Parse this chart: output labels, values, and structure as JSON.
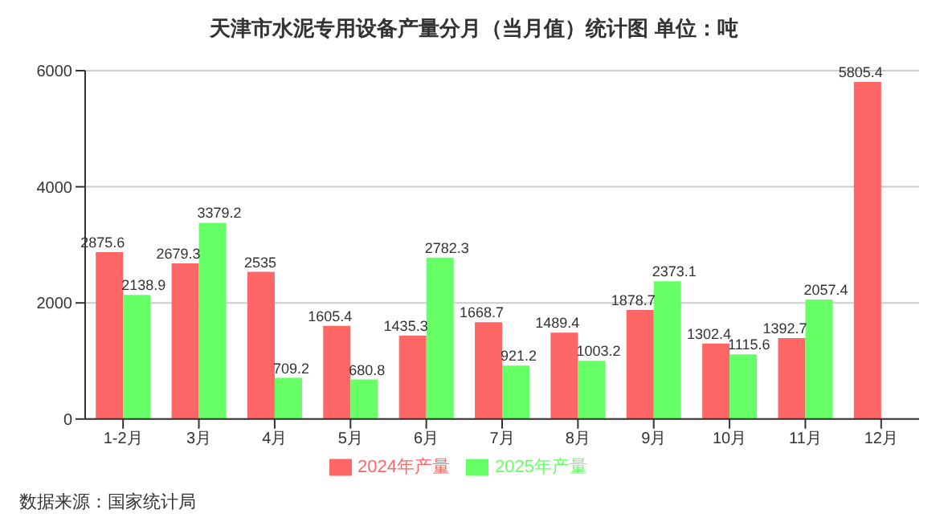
{
  "chart_data": {
    "type": "bar",
    "title": "天津市水泥专用设备产量分月（当月值）统计图 单位：吨",
    "categories": [
      "1-2月",
      "3月",
      "4月",
      "5月",
      "6月",
      "7月",
      "8月",
      "9月",
      "10月",
      "11月",
      "12月"
    ],
    "series": [
      {
        "name": "2024年产量",
        "color": "#ff6666",
        "values": [
          2875.6,
          2679.3,
          2535,
          1605.4,
          1435.3,
          1668.7,
          1489.4,
          1878.7,
          1302.4,
          1392.7,
          5805.4
        ]
      },
      {
        "name": "2025年产量",
        "color": "#66ff66",
        "values": [
          2138.9,
          3379.2,
          709.2,
          680.8,
          2782.3,
          921.2,
          1003.2,
          2373.1,
          1115.6,
          2057.4,
          null
        ]
      }
    ],
    "ylim": [
      0,
      6000
    ],
    "yticks": [
      0,
      2000,
      4000,
      6000
    ],
    "grid": "y",
    "legend": "bottom",
    "data_labels": true,
    "annotations": [
      "数据来源：国家统计局"
    ]
  }
}
